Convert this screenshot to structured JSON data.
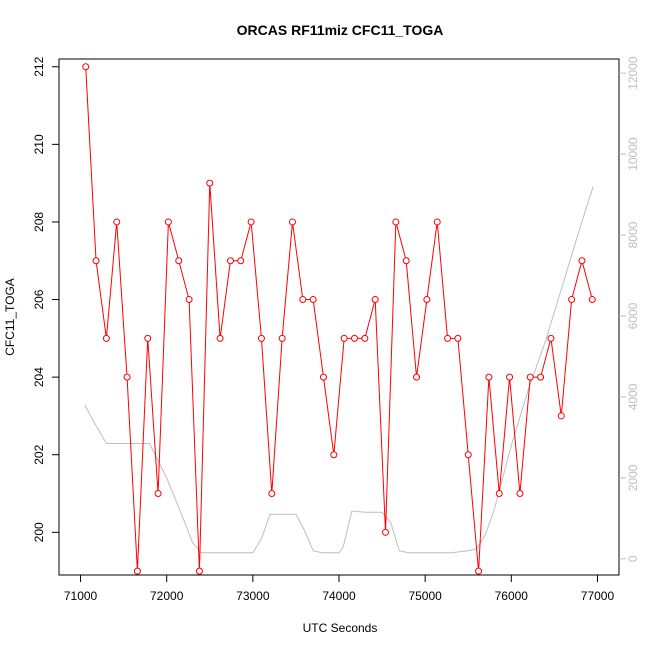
{
  "chart_data": {
    "type": "line",
    "title": "ORCAS RF11miz CFC11_TOGA",
    "xlabel": "UTC Seconds",
    "ylabel": "CFC11_TOGA",
    "xlim": [
      70750,
      77250
    ],
    "ylim": [
      198.9,
      212.2
    ],
    "y2lim": [
      -400,
      12350
    ],
    "x_ticks": [
      71000,
      72000,
      73000,
      74000,
      75000,
      76000,
      77000
    ],
    "y_ticks": [
      200,
      202,
      204,
      206,
      208,
      210,
      212
    ],
    "y2_ticks": [
      0,
      2000,
      4000,
      6000,
      8000,
      10000,
      12000
    ],
    "colors": {
      "cfc11": "#ff0000",
      "altitude": "#bebebe",
      "axes": "#000000",
      "right_axis": "#bebebe"
    },
    "series": [
      {
        "axis": "left",
        "color": "#ff0000",
        "x": [
          71060,
          71180,
          71300,
          71420,
          71540,
          71660,
          71780,
          71900,
          72020,
          72140,
          72260,
          72380,
          72500,
          72620,
          72740,
          72860,
          72980,
          73100,
          73220,
          73340,
          73460,
          73580,
          73700,
          73820,
          73940,
          74060,
          74180,
          74300,
          74420,
          74540,
          74660,
          74780,
          74900,
          75020,
          75140,
          75260,
          75380,
          75500,
          75620,
          75740,
          75860,
          75980,
          76100,
          76220,
          76340,
          76460,
          76580,
          76700,
          76820,
          76940
        ],
        "y": [
          212,
          207,
          205,
          208,
          204,
          199,
          205,
          201,
          208,
          207,
          206,
          199,
          209,
          205,
          207,
          207,
          208,
          205,
          201,
          205,
          208,
          206,
          206,
          204,
          202,
          205,
          205,
          205,
          206,
          200,
          208,
          207,
          204,
          206,
          208,
          205,
          205,
          202,
          199,
          204,
          201,
          204,
          201,
          204,
          204,
          205,
          203,
          206,
          207,
          206
        ]
      },
      {
        "axis": "right",
        "color": "#bebebe",
        "x": [
          71050,
          71150,
          71300,
          71500,
          71800,
          72000,
          72200,
          72300,
          72400,
          72600,
          72800,
          73000,
          73100,
          73200,
          73350,
          73500,
          73600,
          73700,
          73800,
          73900,
          74000,
          74050,
          74150,
          74300,
          74500,
          74600,
          74700,
          74800,
          75000,
          75300,
          75500,
          75600,
          75700,
          75800,
          75900,
          76000,
          76200,
          76400,
          76600,
          76800,
          76950
        ],
        "y": [
          3800,
          3400,
          2850,
          2850,
          2850,
          2000,
          950,
          400,
          150,
          150,
          150,
          150,
          500,
          1100,
          1100,
          1100,
          700,
          200,
          150,
          150,
          150,
          300,
          1180,
          1150,
          1150,
          900,
          200,
          150,
          150,
          150,
          200,
          250,
          600,
          1200,
          2000,
          2800,
          4200,
          5400,
          6800,
          8200,
          9200
        ]
      }
    ]
  }
}
